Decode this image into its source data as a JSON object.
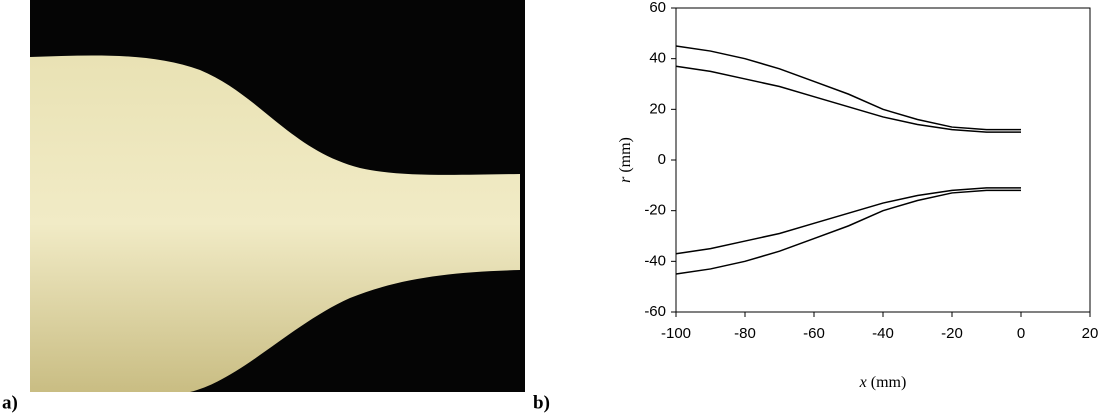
{
  "panel_a": {
    "label": "a)"
  },
  "panel_b": {
    "label": "b)"
  },
  "chart_data": {
    "type": "line",
    "xlabel": [
      "x",
      "(mm)"
    ],
    "ylabel": [
      "r",
      "(mm)"
    ],
    "x": [
      -100,
      -90,
      -80,
      -70,
      -60,
      -50,
      -40,
      -30,
      -20,
      -10,
      0
    ],
    "series": [
      {
        "color": "#000000",
        "values": [
          45,
          43,
          40,
          36,
          31,
          26,
          20,
          16,
          13,
          12,
          12
        ]
      },
      {
        "color": "#000000",
        "values": [
          37,
          35,
          32,
          29,
          25,
          21,
          17,
          14,
          12,
          11,
          11
        ]
      },
      {
        "color": "#000000",
        "values": [
          -37,
          -35,
          -32,
          -29,
          -25,
          -21,
          -17,
          -14,
          -12,
          -11,
          -11
        ]
      },
      {
        "color": "#000000",
        "values": [
          -45,
          -43,
          -40,
          -36,
          -31,
          -26,
          -20,
          -16,
          -13,
          -12,
          -12
        ]
      }
    ],
    "xlim": [
      -100,
      20
    ],
    "xticks": [
      -100,
      -80,
      -60,
      -40,
      -20,
      0,
      20
    ],
    "ylim": [
      -60,
      60
    ],
    "yticks": [
      -60,
      -40,
      -20,
      0,
      20,
      40,
      60
    ],
    "grid": false
  }
}
